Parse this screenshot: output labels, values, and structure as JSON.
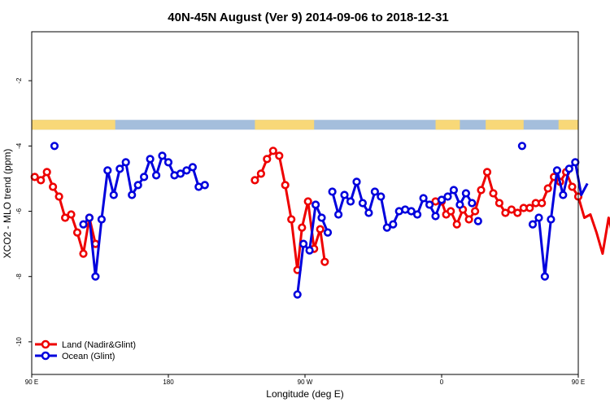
{
  "chart_data": {
    "type": "line",
    "title": "40N-45N August (Ver 9)   2014-09-06 to 2018-12-31",
    "xlabel": "Longitude (deg E)",
    "ylabel": "XCO2 - MLO trend (ppm)",
    "xlim": [
      90,
      450
    ],
    "ylim": [
      -11,
      -0.5
    ],
    "xticks": [
      {
        "value": 90,
        "label": "90 E"
      },
      {
        "value": 180,
        "label": "180"
      },
      {
        "value": 270,
        "label": "90 W"
      },
      {
        "value": 360,
        "label": "0"
      },
      {
        "value": 450,
        "label": "90 E"
      },
      {
        "value": 540,
        "label": "180"
      }
    ],
    "yticks": [
      {
        "value": -2,
        "label": "-2"
      },
      {
        "value": -4,
        "label": "-4"
      },
      {
        "value": -6,
        "label": "-6"
      },
      {
        "value": -8,
        "label": "-8"
      },
      {
        "value": -10,
        "label": "-10"
      }
    ],
    "grid": false,
    "legend_position": "bottom-left",
    "surface_band": {
      "y_range": [
        -3.5,
        -3.2
      ],
      "ocean_color": "#a4bedc",
      "land_color": "#f8d878",
      "land_ranges": [
        [
          90,
          145
        ],
        [
          237,
          276
        ],
        [
          356,
          372
        ],
        [
          389,
          414
        ],
        [
          437,
          500
        ],
        [
          512,
          520
        ]
      ]
    },
    "series": [
      {
        "name": "Land (Nadir&Glint)",
        "color": "#ee0000",
        "segments": [
          [
            [
              92,
              -4.95
            ],
            [
              96,
              -5.05
            ],
            [
              100,
              -4.8
            ],
            [
              104,
              -5.25
            ],
            [
              108,
              -5.55
            ],
            [
              112,
              -6.2
            ],
            [
              116,
              -6.1
            ],
            [
              120,
              -6.65
            ],
            [
              124,
              -7.3
            ],
            [
              128,
              -6.2
            ],
            [
              132,
              -7.0
            ]
          ],
          [
            [
              237,
              -5.05
            ],
            [
              241,
              -4.85
            ],
            [
              245,
              -4.4
            ],
            [
              249,
              -4.15
            ],
            [
              253,
              -4.3
            ],
            [
              257,
              -5.2
            ],
            [
              261,
              -6.25
            ],
            [
              265,
              -7.8
            ],
            [
              268,
              -6.5
            ],
            [
              272,
              -5.7
            ],
            [
              276,
              -7.15
            ],
            [
              280,
              -6.55
            ],
            [
              283,
              -7.55
            ]
          ],
          [
            [
              356,
              -5.7
            ],
            [
              360,
              -5.7
            ],
            [
              363,
              -6.1
            ],
            [
              366,
              -6.0
            ],
            [
              370,
              -6.4
            ],
            [
              374,
              -5.95
            ],
            [
              378,
              -6.25
            ],
            [
              382,
              -6.0
            ],
            [
              386,
              -5.35
            ],
            [
              390,
              -4.8
            ],
            [
              394,
              -5.45
            ],
            [
              398,
              -5.75
            ],
            [
              402,
              -6.05
            ],
            [
              406,
              -5.95
            ],
            [
              410,
              -6.05
            ],
            [
              414,
              -5.9
            ],
            [
              418,
              -5.9
            ],
            [
              422,
              -5.75
            ],
            [
              426,
              -5.75
            ],
            [
              430,
              -5.3
            ],
            [
              434,
              -4.95
            ],
            [
              438,
              -5.1
            ],
            [
              442,
              -4.8
            ],
            [
              446,
              -5.25
            ],
            [
              450,
              -5.55
            ],
            [
              454,
              -6.2
            ],
            [
              458,
              -6.1
            ],
            [
              462,
              -6.65
            ],
            [
              466,
              -7.3
            ],
            [
              470,
              -6.2
            ],
            [
              474,
              -7.0
            ]
          ]
        ]
      },
      {
        "name": "Ocean (Glint)",
        "color": "#0000dd",
        "segments": [
          [
            [
              105,
              -4.0
            ]
          ],
          [
            [
              124,
              -6.4
            ],
            [
              128,
              -6.2
            ],
            [
              132,
              -8.0
            ],
            [
              136,
              -6.25
            ],
            [
              140,
              -4.75
            ],
            [
              144,
              -5.5
            ],
            [
              148,
              -4.7
            ],
            [
              152,
              -4.5
            ],
            [
              156,
              -5.5
            ],
            [
              160,
              -5.2
            ],
            [
              164,
              -4.95
            ],
            [
              168,
              -4.4
            ],
            [
              172,
              -4.9
            ],
            [
              176,
              -4.3
            ],
            [
              180,
              -4.5
            ],
            [
              184,
              -4.9
            ],
            [
              188,
              -4.85
            ],
            [
              192,
              -4.75
            ],
            [
              196,
              -4.65
            ],
            [
              200,
              -5.25
            ],
            [
              204,
              -5.2
            ]
          ],
          [
            [
              265,
              -8.55
            ],
            [
              269,
              -7.0
            ],
            [
              273,
              -7.2
            ],
            [
              277,
              -5.8
            ],
            [
              281,
              -6.2
            ],
            [
              285,
              -6.65
            ]
          ],
          [
            [
              288,
              -5.4
            ],
            [
              292,
              -6.1
            ],
            [
              296,
              -5.5
            ],
            [
              300,
              -5.7
            ],
            [
              304,
              -5.1
            ],
            [
              308,
              -5.75
            ],
            [
              312,
              -6.05
            ],
            [
              316,
              -5.4
            ],
            [
              320,
              -5.55
            ],
            [
              324,
              -6.5
            ],
            [
              328,
              -6.4
            ],
            [
              332,
              -6.0
            ],
            [
              336,
              -5.95
            ],
            [
              340,
              -6.0
            ],
            [
              344,
              -6.1
            ],
            [
              348,
              -5.6
            ],
            [
              352,
              -5.8
            ],
            [
              356,
              -6.15
            ],
            [
              360,
              -5.65
            ],
            [
              364,
              -5.55
            ],
            [
              368,
              -5.35
            ],
            [
              372,
              -5.8
            ],
            [
              376,
              -5.45
            ],
            [
              380,
              -5.75
            ]
          ],
          [
            [
              384,
              -6.3
            ]
          ],
          [
            [
              413,
              -4.0
            ]
          ],
          [
            [
              420,
              -6.4
            ],
            [
              424,
              -6.2
            ],
            [
              428,
              -8.0
            ],
            [
              432,
              -6.25
            ],
            [
              436,
              -4.75
            ],
            [
              440,
              -5.5
            ],
            [
              444,
              -4.7
            ],
            [
              448,
              -4.5
            ],
            [
              452,
              -5.5
            ],
            [
              456,
              -5.15
            ]
          ]
        ]
      }
    ]
  }
}
